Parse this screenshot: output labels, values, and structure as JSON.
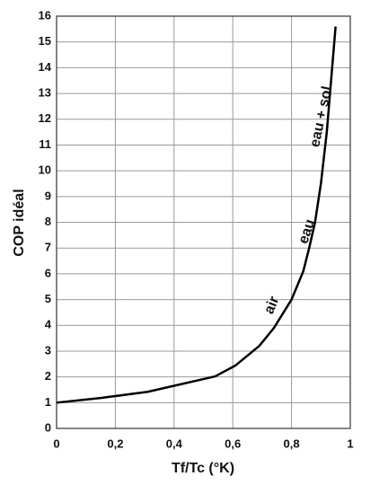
{
  "chart_data": {
    "type": "line",
    "x_label": "Tf/Tc  (°K)",
    "y_label": "COP idéal",
    "x": [
      0,
      0.15,
      0.31,
      0.54,
      0.61,
      0.69,
      0.74,
      0.8,
      0.84,
      0.86,
      0.88,
      0.9,
      0.92,
      0.95
    ],
    "values": [
      1,
      1.18,
      1.42,
      2.02,
      2.45,
      3.2,
      3.9,
      5,
      6.1,
      7,
      8,
      9.5,
      11.5,
      15.6
    ],
    "color": "#000000",
    "xlim": [
      0,
      1
    ],
    "xticks": [
      0,
      {
        "value": 0.2,
        "label": "0,2"
      },
      {
        "value": 0.4,
        "label": "0,4"
      },
      {
        "value": 0.6,
        "label": "0,6"
      },
      {
        "value": 0.8,
        "label": "0,8"
      },
      1
    ],
    "ylim": [
      0,
      16
    ],
    "yticks": [
      0,
      1,
      2,
      3,
      4,
      5,
      6,
      7,
      8,
      9,
      10,
      11,
      12,
      13,
      14,
      15,
      16
    ],
    "grid": true,
    "annotations": [
      "air",
      "eau",
      "eau + sol"
    ]
  }
}
